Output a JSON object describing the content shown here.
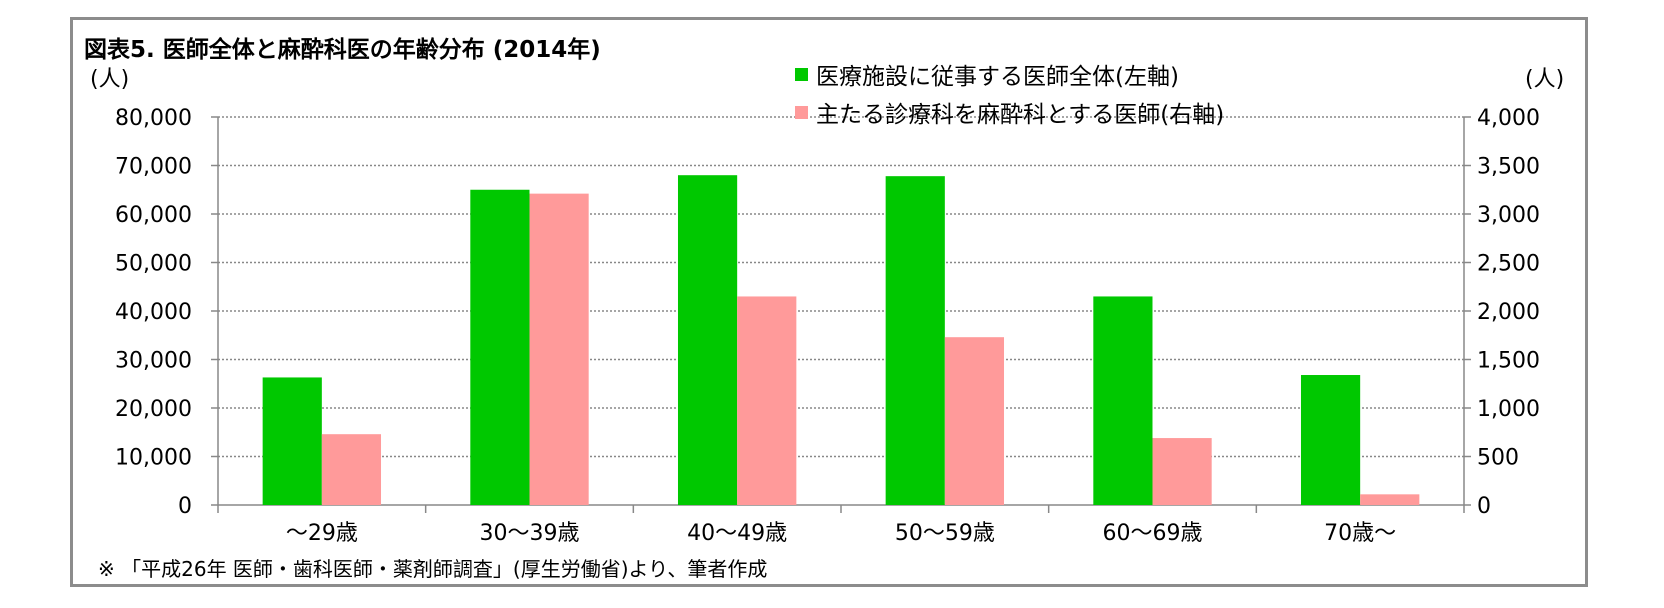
{
  "title": "図表5.  医師全体と麻酔科医の年齢分布 (2014年)",
  "source": "※ 「平成26年 医師・歯科医師・薬剤師調査」(厚生労働省)より、筆者作成",
  "chart_data": {
    "type": "bar",
    "categories": [
      "～29歳",
      "30～39歳",
      "40～49歳",
      "50～59歳",
      "60～69歳",
      "70歳～"
    ],
    "series": [
      {
        "name": "医療施設に従事する医師全体(左軸)",
        "axis": "left",
        "color": "#00c800",
        "values": [
          26300,
          65000,
          68000,
          67800,
          43000,
          26800
        ]
      },
      {
        "name": "主たる診療科を麻酔科とする医師(右軸)",
        "axis": "right",
        "color": "#ff9a9a",
        "values": [
          730,
          3210,
          2150,
          1730,
          690,
          110
        ]
      }
    ],
    "yleft": {
      "label": "(人)",
      "lim": [
        0,
        80000
      ],
      "ticks": [
        "0",
        "10,000",
        "20,000",
        "30,000",
        "40,000",
        "50,000",
        "60,000",
        "70,000",
        "80,000"
      ]
    },
    "yright": {
      "label": "(人)",
      "lim": [
        0,
        4000
      ],
      "ticks": [
        "0",
        "500",
        "1,000",
        "1,500",
        "2,000",
        "2,500",
        "3,000",
        "3,500",
        "4,000"
      ]
    },
    "grid": true,
    "legend_position": "top-right"
  }
}
